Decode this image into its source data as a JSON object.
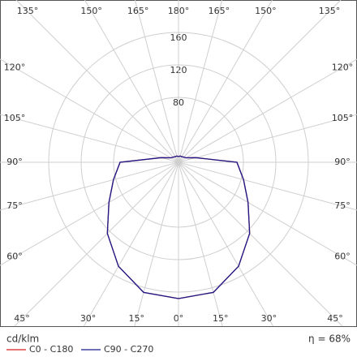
{
  "chart_data": {
    "type": "polar",
    "unit_label": "cd/klm",
    "efficiency_label": "η = 68%",
    "angles": [
      0,
      15,
      30,
      45,
      60,
      75,
      90,
      105,
      120,
      135,
      150,
      165,
      180
    ],
    "series": [
      {
        "name": "C0 - C180",
        "color": "#d62020",
        "values": [
          168,
          166,
          148,
          124,
          99,
          83,
          72,
          22,
          11,
          9,
          8,
          8,
          7
        ]
      },
      {
        "name": "C90 - C270",
        "color": "#1a1a8c",
        "values": [
          168,
          166,
          148,
          124,
          99,
          83,
          72,
          22,
          11,
          9,
          8,
          8,
          7
        ]
      }
    ],
    "rticks": [
      80,
      120,
      160
    ],
    "angle_ticks": [
      {
        "value": 0,
        "label": "0°"
      },
      {
        "value": 15,
        "label": "15°"
      },
      {
        "value": 30,
        "label": "30°"
      },
      {
        "value": 45,
        "label": "45°"
      },
      {
        "value": 60,
        "label": "60°"
      },
      {
        "value": 75,
        "label": "75°"
      },
      {
        "value": 90,
        "label": "90°"
      },
      {
        "value": 105,
        "label": "105°"
      },
      {
        "value": 120,
        "label": "120°"
      },
      {
        "value": 135,
        "label": "135°"
      },
      {
        "value": 150,
        "label": "150°"
      },
      {
        "value": 165,
        "label": "165°"
      },
      {
        "value": 180,
        "label": "180°"
      }
    ],
    "grid": true
  }
}
